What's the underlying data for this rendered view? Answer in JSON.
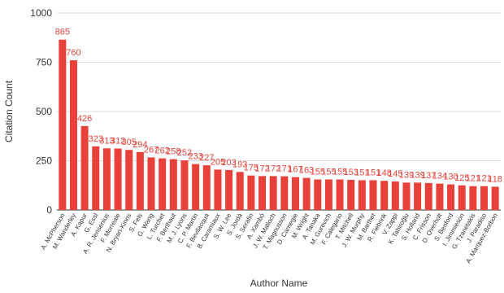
{
  "chart_data": {
    "type": "bar",
    "x_label": "Author Name",
    "y_label": "Citation Count",
    "categories": [
      "A. McPherson",
      "M. Wanderley",
      "A. Kapur",
      "G. Essl",
      "A. R. Jensenius",
      "F. Morreale",
      "N. Bryan-Kinns",
      "S. Fels",
      "G. Wang",
      "L. Turchet",
      "F. Berthaut",
      "M. J. Lyons",
      "C. P. Martin",
      "F. Bevilacqua",
      "B. Caramiaux",
      "S. W. Lee",
      "S. Jordà",
      "S. Serafin",
      "A. Xambó",
      "J. W. Malloch",
      "T. Magnusson",
      "D. Carnegie",
      "M. Wright",
      "A. Tanaka",
      "M. Gurevich",
      "F. Calegario",
      "T. Mitchell",
      "J. W. Murphy",
      "M. Barthet",
      "R. Fiebrink",
      "V. Zappi",
      "K. Tahiroğlu",
      "S. Holland",
      "C. Frisson",
      "D. Overholt",
      "S. Benford",
      "I. Jimmieson",
      "G. Tzanetakis",
      "J. Paradiso",
      "A. Marquez-Borbon"
    ],
    "values": [
      865,
      760,
      426,
      323,
      313,
      312,
      305,
      294,
      267,
      262,
      258,
      252,
      233,
      227,
      205,
      203,
      193,
      175,
      172,
      172,
      171,
      167,
      163,
      155,
      155,
      155,
      153,
      151,
      151,
      148,
      145,
      139,
      139,
      137,
      134,
      130,
      125,
      121,
      121,
      118
    ],
    "color": "#e8413a",
    "ylim": [
      0,
      1000
    ],
    "yticks": [
      0,
      250,
      500,
      750,
      1000
    ],
    "grid": true
  }
}
